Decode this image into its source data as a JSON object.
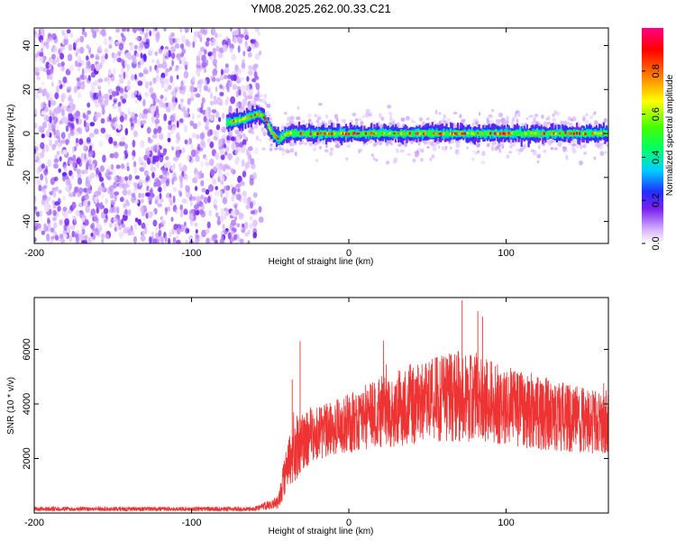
{
  "title": "YM08.2025.262.00.33.C21",
  "chart_data": [
    {
      "type": "heatmap",
      "xlabel": "Height of straight line (km)",
      "ylabel": "Frequency (Hz)",
      "xlim": [
        -200,
        165
      ],
      "ylim": [
        -50,
        48
      ],
      "xticks": [
        -200,
        -100,
        0,
        100
      ],
      "yticks": [
        -40,
        -20,
        0,
        20,
        40
      ],
      "colorbar": {
        "label": "Normalized spectral amplitude",
        "range": [
          0,
          1
        ],
        "ticks": [
          0.0,
          0.2,
          0.4,
          0.6,
          0.8
        ],
        "tick_labels": [
          "0.0",
          "0.2",
          "0.4",
          "0.6",
          "0.8"
        ]
      },
      "noise_region_x": [
        -200,
        -58
      ],
      "signal_track": {
        "x": [
          -78,
          -70,
          -62,
          -58,
          -54,
          -50,
          -45,
          -40,
          -30,
          -20,
          0,
          50,
          100,
          165
        ],
        "freq": [
          5,
          6,
          8,
          9,
          7,
          1,
          -3,
          0,
          0,
          0,
          0,
          0,
          0,
          0
        ],
        "peak_amplitude": 0.95
      }
    },
    {
      "type": "line",
      "xlabel": "Height of straight line (km)",
      "ylabel": "SNR (10 * v/v)",
      "xlim": [
        -200,
        165
      ],
      "ylim": [
        0,
        7900
      ],
      "xticks": [
        -200,
        -100,
        0,
        100
      ],
      "yticks": [
        2000,
        4000,
        6000
      ],
      "color": "#ee3333",
      "envelope": {
        "x": [
          -200,
          -100,
          -60,
          -45,
          -40,
          -35,
          -30,
          -20,
          -10,
          0,
          10,
          20,
          30,
          40,
          50,
          60,
          70,
          80,
          90,
          100,
          110,
          120,
          130,
          140,
          150,
          165
        ],
        "mean": [
          150,
          150,
          150,
          400,
          1500,
          2200,
          2600,
          2900,
          3100,
          3300,
          3500,
          3700,
          3800,
          4000,
          4100,
          4200,
          4300,
          4200,
          4100,
          3900,
          3800,
          3700,
          3600,
          3500,
          3400,
          3300
        ],
        "spread": [
          80,
          80,
          80,
          250,
          900,
          1100,
          1100,
          1000,
          1000,
          1100,
          1200,
          1300,
          1400,
          1500,
          1500,
          1600,
          1700,
          1600,
          1500,
          1500,
          1400,
          1400,
          1300,
          1300,
          1200,
          1200
        ]
      },
      "peak": {
        "x": 72,
        "y": 7800
      }
    }
  ]
}
